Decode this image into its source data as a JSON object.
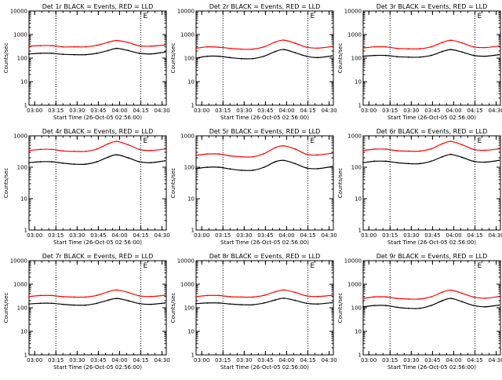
{
  "page": {
    "figure": "Counts/sec vs time for detectors 1r-9r"
  },
  "chart_data": [
    {
      "type": "line",
      "title": "Det 1r BLACK = Events, RED = LLD",
      "xlabel": "Start Time (26-Oct-05 02:56:00)",
      "ylabel": "Counts/sec",
      "xlim": [
        0,
        97
      ],
      "ylim": [
        1,
        10000
      ],
      "yscale": "log",
      "x_ticks": [
        {
          "min": 4,
          "label": "03:00"
        },
        {
          "min": 19,
          "label": "03:15"
        },
        {
          "min": 34,
          "label": "03:30"
        },
        {
          "min": 49,
          "label": "03:45"
        },
        {
          "min": 64,
          "label": "04:00"
        },
        {
          "min": 79,
          "label": "04:15"
        },
        {
          "min": 94,
          "label": "04:30"
        }
      ],
      "y_ticks": [
        {
          "value": 1,
          "label": "1"
        },
        {
          "value": 10,
          "label": "10"
        },
        {
          "value": 100,
          "label": "100"
        },
        {
          "value": 1000,
          "label": "1000"
        },
        {
          "value": 10000,
          "label": "10000"
        }
      ],
      "vlines": [
        19,
        79
      ],
      "marker_label": "E",
      "x": [
        0,
        8,
        16,
        24,
        32,
        40,
        48,
        56,
        62,
        70,
        78,
        86,
        96
      ],
      "series": [
        {
          "name": "Events",
          "color": "#000000",
          "values": [
            150,
            160,
            160,
            145,
            140,
            140,
            160,
            210,
            260,
            210,
            160,
            150,
            180
          ]
        },
        {
          "name": "LLD",
          "color": "#ff0000",
          "values": [
            320,
            340,
            340,
            300,
            300,
            300,
            350,
            470,
            560,
            460,
            330,
            320,
            360
          ]
        }
      ]
    },
    {
      "type": "line",
      "title": "Det 2r BLACK = Events, RED = LLD",
      "xlabel": "Start Time (26-Oct-05 02:56:00)",
      "ylabel": "Counts/sec",
      "xlim": [
        0,
        97
      ],
      "ylim": [
        1,
        10000
      ],
      "yscale": "log",
      "x_ticks": [
        {
          "min": 4,
          "label": "03:00"
        },
        {
          "min": 19,
          "label": "03:15"
        },
        {
          "min": 34,
          "label": "03:30"
        },
        {
          "min": 49,
          "label": "03:45"
        },
        {
          "min": 64,
          "label": "04:00"
        },
        {
          "min": 79,
          "label": "04:15"
        },
        {
          "min": 94,
          "label": "04:30"
        }
      ],
      "y_ticks": [
        {
          "value": 1,
          "label": "1"
        },
        {
          "value": 10,
          "label": "10"
        },
        {
          "value": 100,
          "label": "100"
        },
        {
          "value": 1000,
          "label": "1000"
        },
        {
          "value": 10000,
          "label": "10000"
        }
      ],
      "vlines": [
        19,
        79
      ],
      "marker_label": "E",
      "x": [
        0,
        8,
        16,
        24,
        32,
        40,
        48,
        56,
        62,
        70,
        78,
        86,
        96
      ],
      "series": [
        {
          "name": "Events",
          "color": "#000000",
          "values": [
            100,
            120,
            120,
            105,
            95,
            95,
            120,
            190,
            230,
            170,
            120,
            105,
            125
          ]
        },
        {
          "name": "LLD",
          "color": "#ff0000",
          "values": [
            260,
            300,
            290,
            260,
            240,
            240,
            300,
            480,
            580,
            430,
            290,
            265,
            310
          ]
        }
      ]
    },
    {
      "type": "line",
      "title": "Det 3r BLACK = Events, RED = LLD",
      "xlabel": "Start Time (26-Oct-05 02:56:00)",
      "ylabel": "Counts/sec",
      "xlim": [
        0,
        97
      ],
      "ylim": [
        1,
        10000
      ],
      "yscale": "log",
      "x_ticks": [
        {
          "min": 4,
          "label": "03:00"
        },
        {
          "min": 19,
          "label": "03:15"
        },
        {
          "min": 34,
          "label": "03:30"
        },
        {
          "min": 49,
          "label": "03:45"
        },
        {
          "min": 64,
          "label": "04:00"
        },
        {
          "min": 79,
          "label": "04:15"
        },
        {
          "min": 94,
          "label": "04:30"
        }
      ],
      "y_ticks": [
        {
          "value": 1,
          "label": "1"
        },
        {
          "value": 10,
          "label": "10"
        },
        {
          "value": 100,
          "label": "100"
        },
        {
          "value": 1000,
          "label": "1000"
        },
        {
          "value": 10000,
          "label": "10000"
        }
      ],
      "vlines": [
        19,
        79
      ],
      "marker_label": "E",
      "x": [
        0,
        8,
        16,
        24,
        32,
        40,
        48,
        56,
        62,
        70,
        78,
        86,
        96
      ],
      "series": [
        {
          "name": "Events",
          "color": "#000000",
          "values": [
            120,
            130,
            130,
            115,
            110,
            110,
            130,
            190,
            230,
            180,
            130,
            120,
            140
          ]
        },
        {
          "name": "LLD",
          "color": "#ff0000",
          "values": [
            270,
            300,
            300,
            260,
            250,
            250,
            300,
            460,
            570,
            440,
            300,
            280,
            320
          ]
        }
      ]
    },
    {
      "type": "line",
      "title": "Det 4r BLACK = Events, RED = LLD",
      "xlabel": "Start Time (26-Oct-05 02:56:00)",
      "ylabel": "Counts/sec",
      "xlim": [
        0,
        97
      ],
      "ylim": [
        1,
        1000
      ],
      "yscale": "log",
      "x_ticks": [
        {
          "min": 4,
          "label": "03:00"
        },
        {
          "min": 19,
          "label": "03:15"
        },
        {
          "min": 34,
          "label": "03:30"
        },
        {
          "min": 49,
          "label": "03:45"
        },
        {
          "min": 64,
          "label": "04:00"
        },
        {
          "min": 79,
          "label": "04:15"
        },
        {
          "min": 94,
          "label": "04:30"
        }
      ],
      "y_ticks": [
        {
          "value": 1,
          "label": "1"
        },
        {
          "value": 10,
          "label": "10"
        },
        {
          "value": 100,
          "label": "100"
        },
        {
          "value": 1000,
          "label": "1000"
        }
      ],
      "vlines": [
        19,
        79
      ],
      "marker_label": "E",
      "x": [
        0,
        8,
        16,
        24,
        32,
        40,
        48,
        56,
        62,
        70,
        78,
        86,
        96
      ],
      "series": [
        {
          "name": "Events",
          "color": "#000000",
          "values": [
            140,
            150,
            150,
            135,
            125,
            125,
            150,
            210,
            250,
            200,
            150,
            140,
            160
          ]
        },
        {
          "name": "LLD",
          "color": "#ff0000",
          "values": [
            340,
            370,
            370,
            330,
            320,
            320,
            380,
            560,
            660,
            520,
            370,
            340,
            380
          ]
        }
      ]
    },
    {
      "type": "line",
      "title": "Det 5r BLACK = Events, RED = LLD",
      "xlabel": "Start Time (26-Oct-05 02:56:00)",
      "ylabel": "Counts/sec",
      "xlim": [
        0,
        97
      ],
      "ylim": [
        1,
        1000
      ],
      "yscale": "log",
      "x_ticks": [
        {
          "min": 4,
          "label": "03:00"
        },
        {
          "min": 19,
          "label": "03:15"
        },
        {
          "min": 34,
          "label": "03:30"
        },
        {
          "min": 49,
          "label": "03:45"
        },
        {
          "min": 64,
          "label": "04:00"
        },
        {
          "min": 79,
          "label": "04:15"
        },
        {
          "min": 94,
          "label": "04:30"
        }
      ],
      "y_ticks": [
        {
          "value": 1,
          "label": "1"
        },
        {
          "value": 10,
          "label": "10"
        },
        {
          "value": 100,
          "label": "100"
        },
        {
          "value": 1000,
          "label": "1000"
        }
      ],
      "vlines": [
        19,
        79
      ],
      "marker_label": "E",
      "x": [
        0,
        8,
        16,
        24,
        32,
        40,
        48,
        56,
        62,
        70,
        78,
        86,
        96
      ],
      "series": [
        {
          "name": "Events",
          "color": "#000000",
          "values": [
            90,
            100,
            100,
            88,
            80,
            80,
            100,
            150,
            165,
            130,
            95,
            90,
            105
          ]
        },
        {
          "name": "LLD",
          "color": "#ff0000",
          "values": [
            240,
            265,
            265,
            230,
            215,
            215,
            270,
            420,
            480,
            380,
            260,
            245,
            280
          ]
        }
      ]
    },
    {
      "type": "line",
      "title": "Det 6r BLACK = Events, RED = LLD",
      "xlabel": "Start Time (26-Oct-05 02:56:00)",
      "ylabel": "Counts/sec",
      "xlim": [
        0,
        97
      ],
      "ylim": [
        1,
        1000
      ],
      "yscale": "log",
      "x_ticks": [
        {
          "min": 4,
          "label": "03:00"
        },
        {
          "min": 19,
          "label": "03:15"
        },
        {
          "min": 34,
          "label": "03:30"
        },
        {
          "min": 49,
          "label": "03:45"
        },
        {
          "min": 64,
          "label": "04:00"
        },
        {
          "min": 79,
          "label": "04:15"
        },
        {
          "min": 94,
          "label": "04:30"
        }
      ],
      "y_ticks": [
        {
          "value": 1,
          "label": "1"
        },
        {
          "value": 10,
          "label": "10"
        },
        {
          "value": 100,
          "label": "100"
        },
        {
          "value": 1000,
          "label": "1000"
        }
      ],
      "vlines": [
        19,
        79
      ],
      "marker_label": "E",
      "x": [
        0,
        8,
        16,
        24,
        32,
        40,
        48,
        56,
        62,
        70,
        78,
        86,
        96
      ],
      "series": [
        {
          "name": "Events",
          "color": "#000000",
          "values": [
            140,
            155,
            155,
            140,
            130,
            130,
            155,
            215,
            255,
            205,
            155,
            145,
            165
          ]
        },
        {
          "name": "LLD",
          "color": "#ff0000",
          "values": [
            340,
            375,
            375,
            335,
            325,
            325,
            385,
            560,
            660,
            520,
            370,
            345,
            385
          ]
        }
      ]
    },
    {
      "type": "line",
      "title": "Det 7r BLACK = Events, RED = LLD",
      "xlabel": "Start Time (26-Oct-05 02:56:00)",
      "ylabel": "Counts/sec",
      "xlim": [
        0,
        97
      ],
      "ylim": [
        1,
        10000
      ],
      "yscale": "log",
      "x_ticks": [
        {
          "min": 4,
          "label": "03:00"
        },
        {
          "min": 19,
          "label": "03:15"
        },
        {
          "min": 34,
          "label": "03:30"
        },
        {
          "min": 49,
          "label": "03:45"
        },
        {
          "min": 64,
          "label": "04:00"
        },
        {
          "min": 79,
          "label": "04:15"
        },
        {
          "min": 94,
          "label": "04:30"
        }
      ],
      "y_ticks": [
        {
          "value": 1,
          "label": "1"
        },
        {
          "value": 10,
          "label": "10"
        },
        {
          "value": 100,
          "label": "100"
        },
        {
          "value": 1000,
          "label": "1000"
        },
        {
          "value": 10000,
          "label": "10000"
        }
      ],
      "vlines": [
        19,
        79
      ],
      "marker_label": "E",
      "x": [
        0,
        8,
        16,
        24,
        32,
        40,
        48,
        56,
        62,
        70,
        78,
        86,
        96
      ],
      "series": [
        {
          "name": "Events",
          "color": "#000000",
          "values": [
            145,
            155,
            155,
            140,
            130,
            130,
            155,
            210,
            250,
            200,
            150,
            140,
            160
          ]
        },
        {
          "name": "LLD",
          "color": "#ff0000",
          "values": [
            300,
            330,
            330,
            295,
            285,
            285,
            335,
            480,
            570,
            450,
            320,
            300,
            340
          ]
        }
      ]
    },
    {
      "type": "line",
      "title": "Det 8r BLACK = Events, RED = LLD",
      "xlabel": "Start Time (26-Oct-05 02:56:00)",
      "ylabel": "Counts/sec",
      "xlim": [
        0,
        97
      ],
      "ylim": [
        1,
        10000
      ],
      "yscale": "log",
      "x_ticks": [
        {
          "min": 4,
          "label": "03:00"
        },
        {
          "min": 19,
          "label": "03:15"
        },
        {
          "min": 34,
          "label": "03:30"
        },
        {
          "min": 49,
          "label": "03:45"
        },
        {
          "min": 64,
          "label": "04:00"
        },
        {
          "min": 79,
          "label": "04:15"
        },
        {
          "min": 94,
          "label": "04:30"
        }
      ],
      "y_ticks": [
        {
          "value": 1,
          "label": "1"
        },
        {
          "value": 10,
          "label": "10"
        },
        {
          "value": 100,
          "label": "100"
        },
        {
          "value": 1000,
          "label": "1000"
        },
        {
          "value": 10000,
          "label": "10000"
        }
      ],
      "vlines": [
        19,
        79
      ],
      "marker_label": "E",
      "x": [
        0,
        8,
        16,
        24,
        32,
        40,
        48,
        56,
        62,
        70,
        78,
        86,
        96
      ],
      "series": [
        {
          "name": "Events",
          "color": "#000000",
          "values": [
            150,
            160,
            160,
            145,
            135,
            135,
            160,
            215,
            255,
            205,
            155,
            145,
            165
          ]
        },
        {
          "name": "LLD",
          "color": "#ff0000",
          "values": [
            300,
            330,
            330,
            295,
            285,
            285,
            335,
            480,
            570,
            450,
            320,
            300,
            340
          ]
        }
      ]
    },
    {
      "type": "line",
      "title": "Det 9r BLACK = Events, RED = LLD",
      "xlabel": "Start Time (26-Oct-05 02:56:00)",
      "ylabel": "Counts/sec",
      "xlim": [
        0,
        97
      ],
      "ylim": [
        1,
        10000
      ],
      "yscale": "log",
      "x_ticks": [
        {
          "min": 4,
          "label": "03:00"
        },
        {
          "min": 19,
          "label": "03:15"
        },
        {
          "min": 34,
          "label": "03:30"
        },
        {
          "min": 49,
          "label": "03:45"
        },
        {
          "min": 64,
          "label": "04:00"
        },
        {
          "min": 79,
          "label": "04:15"
        },
        {
          "min": 94,
          "label": "04:30"
        }
      ],
      "y_ticks": [
        {
          "value": 1,
          "label": "1"
        },
        {
          "value": 10,
          "label": "10"
        },
        {
          "value": 100,
          "label": "100"
        },
        {
          "value": 1000,
          "label": "1000"
        },
        {
          "value": 10000,
          "label": "10000"
        }
      ],
      "vlines": [
        19,
        79
      ],
      "marker_label": "E",
      "x": [
        0,
        8,
        16,
        24,
        32,
        40,
        48,
        56,
        62,
        70,
        78,
        86,
        96
      ],
      "series": [
        {
          "name": "Events",
          "color": "#000000",
          "values": [
            110,
            125,
            125,
            105,
            95,
            95,
            125,
            200,
            250,
            180,
            125,
            110,
            130
          ]
        },
        {
          "name": "LLD",
          "color": "#ff0000",
          "values": [
            250,
            290,
            290,
            250,
            235,
            235,
            290,
            460,
            560,
            410,
            285,
            255,
            300
          ]
        }
      ]
    }
  ]
}
